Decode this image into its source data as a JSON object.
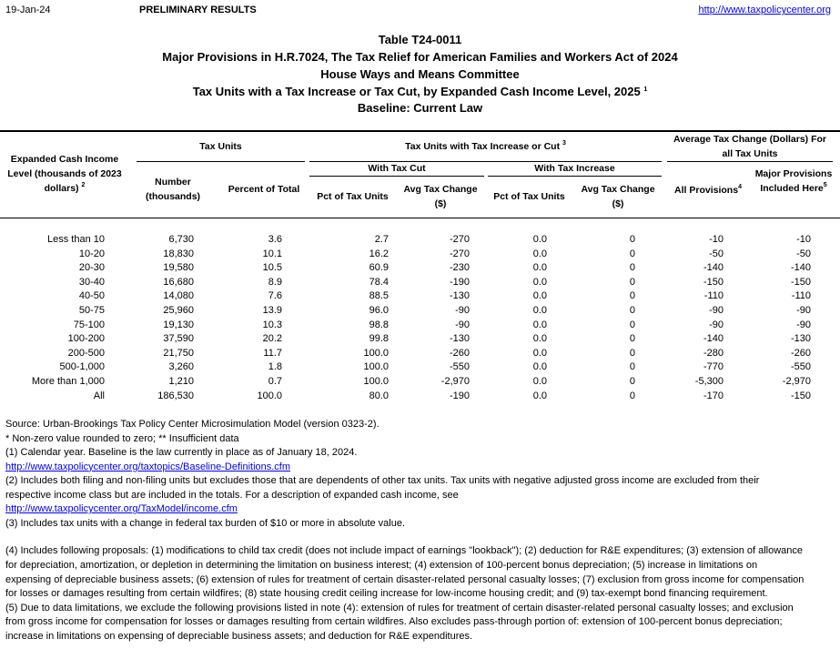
{
  "header": {
    "date": "19-Jan-24",
    "status": "PRELIMINARY RESULTS",
    "url": "http://www.taxpolicycenter.org"
  },
  "title": {
    "table": "Table T24-0011",
    "bill": "Major Provisions in H.R.7024, The Tax Relief for American Families and Workers Act of 2024",
    "committee": "House Ways and Means Committee",
    "subject": "Tax Units with a Tax Increase or Tax Cut, by Expanded Cash Income Level, 2025",
    "subject_note": "1",
    "baseline": "Baseline: Current Law"
  },
  "table": {
    "columns": {
      "income_level": "Expanded Cash Income Level (thousands of 2023 dollars)",
      "income_level_note": "2",
      "tax_units": {
        "group": "Tax Units",
        "number": "Number (thousands)",
        "percent": "Percent of Total"
      },
      "change": {
        "group": "Tax Units with Tax Increase or Cut",
        "group_note": "3",
        "cut": {
          "group": "With Tax Cut",
          "pct": "Pct of Tax Units",
          "avg": "Avg Tax Change ($)"
        },
        "increase": {
          "group": "With Tax Increase",
          "pct": "Pct of Tax Units",
          "avg": "Avg Tax Change ($)"
        }
      },
      "average": {
        "group": "Average Tax Change (Dollars) For all Tax Units",
        "all": "All Provisions",
        "all_note": "4",
        "major": "Major Provisions Included Here",
        "major_note": "5"
      }
    },
    "rows": [
      [
        "Less than 10",
        "6,730",
        "3.6",
        "2.7",
        "-270",
        "0.0",
        "0",
        "-10",
        "-10"
      ],
      [
        "10-20",
        "18,830",
        "10.1",
        "16.2",
        "-270",
        "0.0",
        "0",
        "-50",
        "-50"
      ],
      [
        "20-30",
        "19,580",
        "10.5",
        "60.9",
        "-230",
        "0.0",
        "0",
        "-140",
        "-140"
      ],
      [
        "30-40",
        "16,680",
        "8.9",
        "78.4",
        "-190",
        "0.0",
        "0",
        "-150",
        "-150"
      ],
      [
        "40-50",
        "14,080",
        "7.6",
        "88.5",
        "-130",
        "0.0",
        "0",
        "-110",
        "-110"
      ],
      [
        "50-75",
        "25,960",
        "13.9",
        "96.0",
        "-90",
        "0.0",
        "0",
        "-90",
        "-90"
      ],
      [
        "75-100",
        "19,130",
        "10.3",
        "98.8",
        "-90",
        "0.0",
        "0",
        "-90",
        "-90"
      ],
      [
        "100-200",
        "37,590",
        "20.2",
        "99.8",
        "-130",
        "0.0",
        "0",
        "-140",
        "-130"
      ],
      [
        "200-500",
        "21,750",
        "11.7",
        "100.0",
        "-260",
        "0.0",
        "0",
        "-280",
        "-260"
      ],
      [
        "500-1,000",
        "3,260",
        "1.8",
        "100.0",
        "-550",
        "0.0",
        "0",
        "-770",
        "-550"
      ],
      [
        "More than 1,000",
        "1,210",
        "0.7",
        "100.0",
        "-2,970",
        "0.0",
        "0",
        "-5,300",
        "-2,970"
      ],
      [
        "All",
        "186,530",
        "100.0",
        "80.0",
        "-190",
        "0.0",
        "0",
        "-170",
        "-150"
      ]
    ]
  },
  "notes": [
    "Source: Urban-Brookings Tax Policy Center Microsimulation Model (version 0323-2).",
    "* Non-zero value rounded to zero; ** Insufficient data",
    "(1) Calendar year. Baseline is the law currently in place as of January 18, 2024.",
    "http://www.taxpolicycenter.org/taxtopics/Baseline-Definitions.cfm",
    "(2) Includes both filing and non-filing units but excludes those that are dependents of other tax units. Tax units with negative adjusted gross income are excluded from their",
    "respective income class but are included in the totals. For a description of expanded cash income, see",
    "http://www.taxpolicycenter.org/TaxModel/income.cfm",
    "(3) Includes tax units with a change in federal tax burden of $10 or more in absolute value.",
    "(4) Includes following proposals: (1) modifications to child tax credit (does not include impact of earnings \"lookback\"); (2) deduction for R&E expenditures; (3) extension of allowance",
    "for depreciation, amortization, or depletion in determining the limitation on business interest; (4) extension of 100-percent bonus depreciation; (5) increase in limitations on",
    "expensing of depreciable business assets; (6) extension of rules for treatment of certain disaster-related personal casualty losses; (7) exclusion from gross income for compensation",
    "for losses or damages resulting from certain wildfires; (8) state housing credit ceiling increase for low-income housing credit; and (9) tax-exempt bond financing requirement.",
    "(5) Due to data limitations, we exclude the following provisions listed in note (4): extension of rules for treatment of certain disaster-related personal casualty losses; and exclusion",
    "from gross income for compensation for losses or damages resulting from certain wildfires. Also excludes pass-through portion of: extension of 100-percent bonus depreciation;",
    "increase in limitations on expensing of depreciable business assets; and deduction for R&E expenditures."
  ]
}
